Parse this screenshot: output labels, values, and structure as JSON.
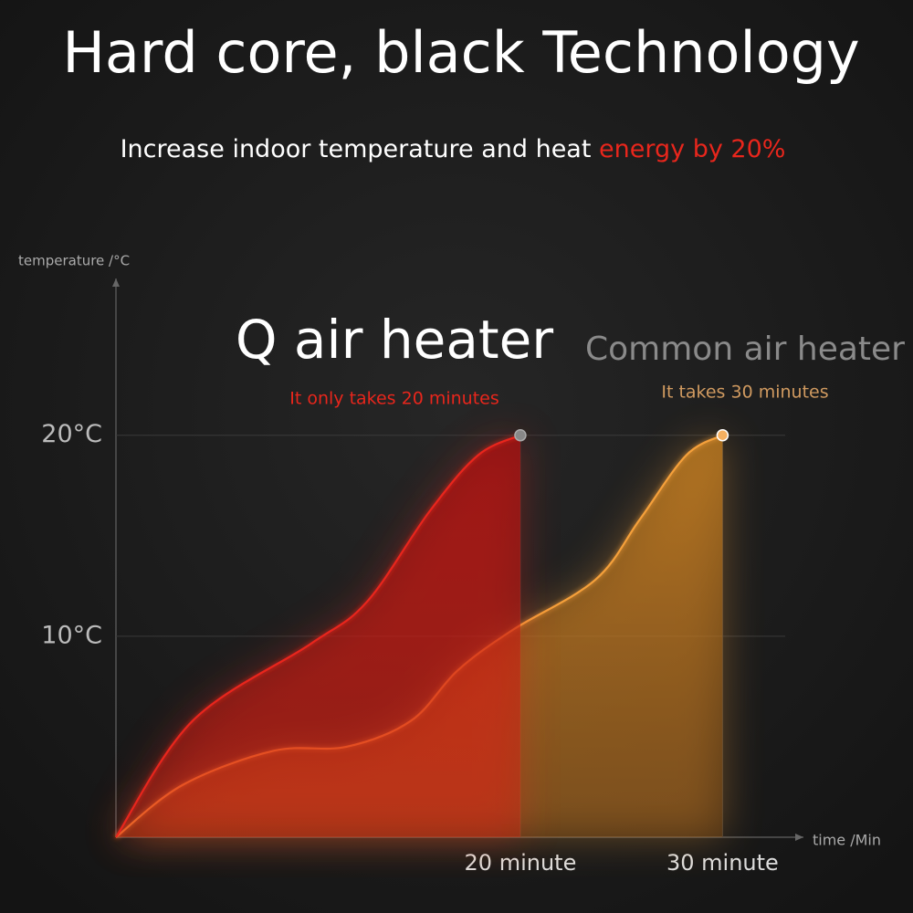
{
  "chart_data": {
    "type": "line",
    "title": "Hard core, black Technology",
    "subtitle": "Increase indoor temperature and heat ",
    "subtitle_highlight": "energy by 20%",
    "y_label": "temperature /°C",
    "x_label": "time /Min",
    "xlim": [
      0,
      34
    ],
    "ylim": [
      0,
      27.8
    ],
    "xticks": [
      {
        "value": 20,
        "label": "20 minute"
      },
      {
        "value": 30,
        "label": "30 minute"
      }
    ],
    "yticks": [
      {
        "value": 10,
        "label": "10°C"
      },
      {
        "value": 20,
        "label": "20°C"
      }
    ],
    "grid": true,
    "series": [
      {
        "name": "Q air heater",
        "note": "It only takes 20 minutes",
        "color": "#e8261c",
        "x": [
          0,
          3.8,
          9.6,
          12.4,
          15.5,
          17.9,
          20
        ],
        "values": [
          0,
          5.8,
          9.6,
          11.7,
          16.2,
          19,
          20
        ]
      },
      {
        "name": "Common air heater",
        "note": "It takes 30 minutes",
        "color": "#f5a03a",
        "x": [
          0,
          3.3,
          7.8,
          11.4,
          14.6,
          16.9,
          19.6,
          23.7,
          25.9,
          28.2,
          30
        ],
        "values": [
          0,
          2.6,
          4.3,
          4.5,
          5.8,
          8.3,
          10.3,
          12.8,
          15.8,
          19,
          20
        ]
      }
    ]
  }
}
